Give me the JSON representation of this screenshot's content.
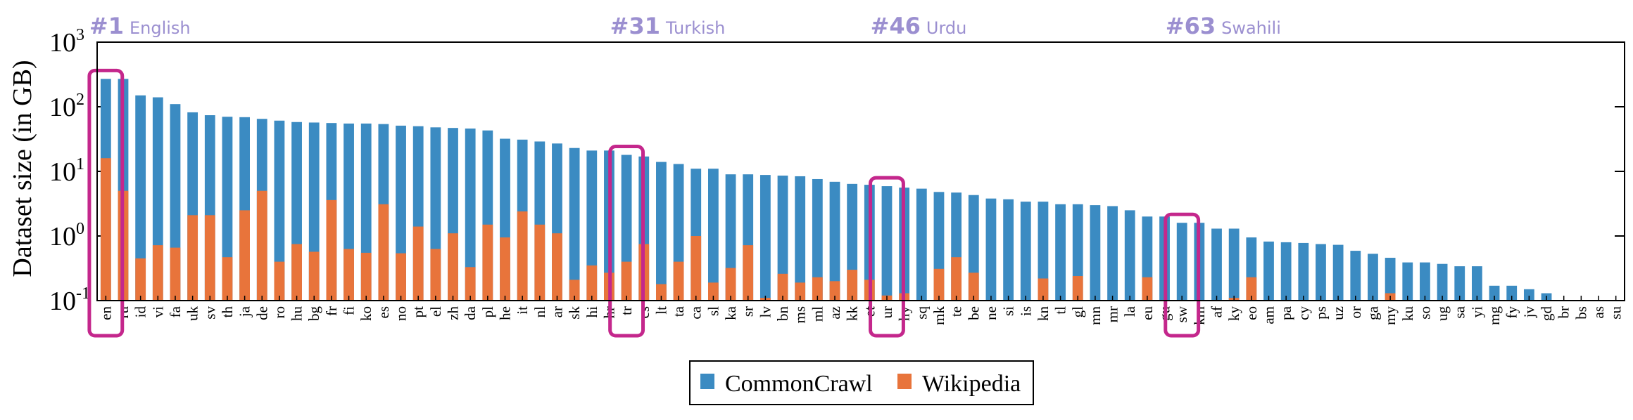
{
  "chart_data": {
    "type": "bar",
    "ylabel": "Dataset size (in GB)",
    "yscale": "log",
    "ylim": [
      0.1,
      1000
    ],
    "yticks": [
      {
        "base": "10",
        "exp": "3"
      },
      {
        "base": "10",
        "exp": "2"
      },
      {
        "base": "10",
        "exp": "1"
      },
      {
        "base": "10",
        "exp": "0"
      },
      {
        "base": "10",
        "exp": "-1"
      }
    ],
    "grid": false,
    "legend_position": "bottom-center",
    "colors": {
      "commoncrawl": "#3b8bc2",
      "wikipedia": "#e8743b",
      "highlight": "#c4278c",
      "annotation": "#9b8fd0"
    },
    "categories": [
      "en",
      "ru",
      "id",
      "vi",
      "fa",
      "uk",
      "sv",
      "th",
      "ja",
      "de",
      "ro",
      "hu",
      "bg",
      "fr",
      "fi",
      "ko",
      "es",
      "no",
      "pt",
      "el",
      "zh",
      "da",
      "pl",
      "he",
      "it",
      "nl",
      "ar",
      "sk",
      "hi",
      "hr",
      "tr",
      "cs",
      "lt",
      "ta",
      "ca",
      "sl",
      "ka",
      "sr",
      "lv",
      "bn",
      "ms",
      "ml",
      "az",
      "kk",
      "et",
      "ur",
      "hy",
      "sq",
      "mk",
      "te",
      "be",
      "ne",
      "si",
      "is",
      "kn",
      "tl",
      "gl",
      "mn",
      "mr",
      "la",
      "eu",
      "gu",
      "sw",
      "km",
      "af",
      "ky",
      "eo",
      "am",
      "pa",
      "cy",
      "ps",
      "uz",
      "or",
      "ga",
      "my",
      "ku",
      "so",
      "ug",
      "sa",
      "yi",
      "mg",
      "fy",
      "jv",
      "gd",
      "br",
      "bs",
      "as",
      "su"
    ],
    "series": [
      {
        "name": "CommonCrawl",
        "values": [
          270,
          270,
          150,
          140,
          110,
          82,
          74,
          70,
          69,
          65,
          61,
          58,
          57,
          56,
          55,
          55,
          54,
          51,
          50,
          48,
          47,
          46,
          43,
          32,
          31,
          29,
          27,
          23,
          21,
          21,
          18,
          17,
          14,
          13,
          11,
          11,
          9,
          9,
          8.8,
          8.6,
          8.4,
          7.6,
          6.9,
          6.4,
          6.2,
          5.9,
          5.6,
          5.4,
          4.8,
          4.7,
          4.3,
          3.8,
          3.7,
          3.4,
          3.4,
          3.1,
          3.1,
          3,
          2.9,
          2.5,
          2,
          2,
          1.6,
          1.6,
          1.3,
          1.3,
          0.95,
          0.82,
          0.8,
          0.78,
          0.75,
          0.73,
          0.59,
          0.53,
          0.46,
          0.39,
          0.39,
          0.37,
          0.34,
          0.34,
          0.17,
          0.17,
          0.15,
          0.13,
          0.1,
          0.1,
          0.1,
          0.1
        ]
      },
      {
        "name": "Wikipedia",
        "values": [
          16,
          5,
          0.45,
          0.72,
          0.66,
          2.1,
          2.1,
          0.47,
          2.5,
          5,
          0.4,
          0.75,
          0.57,
          3.6,
          0.63,
          0.55,
          3.1,
          0.54,
          1.4,
          0.63,
          1.1,
          0.33,
          1.5,
          0.95,
          2.4,
          1.5,
          1.1,
          0.21,
          0.35,
          0.27,
          0.4,
          0.75,
          0.18,
          0.4,
          1,
          0.19,
          0.32,
          0.72,
          0.11,
          0.26,
          0.19,
          0.23,
          0.2,
          0.3,
          0.21,
          0.12,
          0.13,
          0.1,
          0.31,
          0.47,
          0.27,
          0.1,
          0.1,
          0.1,
          0.22,
          0.1,
          0.24,
          0.1,
          0.1,
          0.1,
          0.23,
          0.1,
          0.1,
          0.1,
          0.1,
          0.11,
          0.23,
          0.1,
          0.1,
          0.1,
          0.1,
          0.1,
          0.1,
          0.1,
          0.13,
          0.1,
          0.1,
          0.1,
          0.1,
          0.1,
          0.1,
          0.1,
          0.1,
          0.1,
          0.1,
          0.1,
          0.1,
          0.1
        ]
      }
    ],
    "annotations": [
      {
        "rank": "#1",
        "name": "English",
        "category": "en"
      },
      {
        "rank": "#31",
        "name": "Turkish",
        "category": "tr"
      },
      {
        "rank": "#46",
        "name": "Urdu",
        "category": "ur"
      },
      {
        "rank": "#63",
        "name": "Swahili",
        "category": "sw"
      }
    ]
  }
}
